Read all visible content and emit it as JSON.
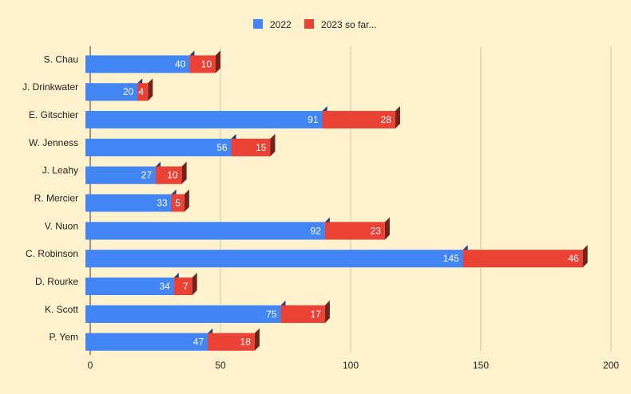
{
  "colors": {
    "background": "#fff2cc",
    "series_2022": "#4285f4",
    "series_2023": "#ea4335"
  },
  "chart_data": {
    "type": "bar",
    "orientation": "horizontal",
    "stacked": true,
    "style": "3d",
    "title": "",
    "xlabel": "",
    "ylabel": "",
    "categories": [
      "S. Chau",
      "J. Drinkwater",
      "E. Gitschier",
      "W. Jenness",
      "J. Leahy",
      "R. Mercier",
      "V. Nuon",
      "C. Robinson",
      "D. Rourke",
      "K. Scott",
      "P. Yem"
    ],
    "series": [
      {
        "name": "2022",
        "color": "#4285f4",
        "values": [
          40,
          20,
          91,
          56,
          27,
          33,
          92,
          145,
          34,
          75,
          47
        ]
      },
      {
        "name": "2023 so far...",
        "color": "#ea4335",
        "values": [
          10,
          4,
          28,
          15,
          10,
          5,
          23,
          46,
          7,
          17,
          18
        ]
      }
    ],
    "xlim": [
      0,
      200
    ],
    "x_ticks": [
      "0",
      "50",
      "100",
      "150",
      "200"
    ],
    "legend_position": "top",
    "grid": true,
    "data_labels": true
  }
}
